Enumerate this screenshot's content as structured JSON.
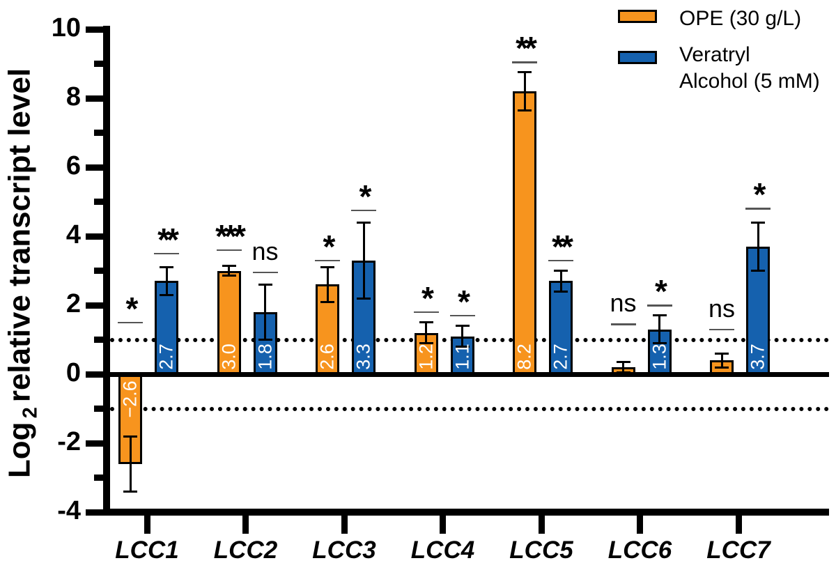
{
  "legend": {
    "items": [
      {
        "label": "OPE (30 g/L)",
        "lines": [
          "OPE (30 g/L)"
        ],
        "color": "#F7941E"
      },
      {
        "label": "Veratryl Alcohol (5 mM)",
        "lines": [
          "Veratryl",
          "Alcohol (5 mM)"
        ],
        "color": "#1561AE"
      }
    ]
  },
  "chart_data": {
    "type": "bar",
    "title": "",
    "ylabel": "Log2 relative transcript level",
    "ylabel_parts": {
      "prefix": "Log",
      "sub": "2",
      "rest": "relative transcript level"
    },
    "xlabel": "",
    "ylim": [
      -4,
      10
    ],
    "ytick_major": [
      10,
      8,
      6,
      4,
      2,
      0,
      -2,
      -4
    ],
    "ytick_minor": [
      9,
      7,
      5,
      3,
      1,
      -1,
      -3
    ],
    "reference_lines": [
      1,
      -1
    ],
    "grid": false,
    "legend_position": "top-right",
    "categories": [
      "LCC1",
      "LCC2",
      "LCC3",
      "LCC4",
      "LCC5",
      "LCC6",
      "LCC7"
    ],
    "series": [
      {
        "name": "OPE (30 g/L)",
        "key": "ope",
        "color": "#F7941E",
        "values": [
          -2.6,
          3.0,
          2.6,
          1.2,
          8.2,
          0.2,
          0.4
        ],
        "errors": [
          0.8,
          0.15,
          0.5,
          0.3,
          0.55,
          0.15,
          0.2
        ],
        "bar_labels": [
          "−2.6",
          "3.0",
          "2.6",
          "1.2",
          "8.2",
          null,
          null
        ],
        "significance": [
          "*",
          "***",
          "*",
          "*",
          "**",
          "ns",
          "ns"
        ],
        "sig_line_y": [
          1.5,
          3.6,
          3.3,
          1.8,
          9.05,
          1.45,
          1.3
        ]
      },
      {
        "name": "Veratryl Alcohol (5 mM)",
        "key": "va",
        "color": "#1561AE",
        "values": [
          2.7,
          1.8,
          3.3,
          1.1,
          2.7,
          1.3,
          3.7
        ],
        "errors": [
          0.4,
          0.8,
          1.1,
          0.3,
          0.3,
          0.4,
          0.7
        ],
        "bar_labels": [
          "2.7",
          "1.8",
          "3.3",
          "1.1",
          "2.7",
          "1.3",
          "3.7"
        ],
        "significance": [
          "**",
          "ns",
          "*",
          "*",
          "**",
          "*",
          "*"
        ],
        "sig_line_y": [
          3.5,
          2.95,
          4.75,
          1.7,
          3.3,
          2.0,
          4.8
        ]
      }
    ]
  }
}
